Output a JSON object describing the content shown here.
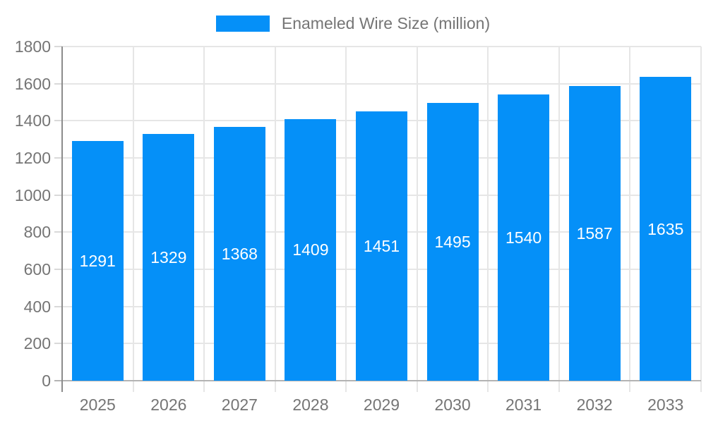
{
  "chart_data": {
    "type": "bar",
    "title": "Enameled Wire Size (million)",
    "categories": [
      "2025",
      "2026",
      "2027",
      "2028",
      "2029",
      "2030",
      "2031",
      "2032",
      "2033"
    ],
    "series": [
      {
        "name": "Enameled Wire Size (million)",
        "values": [
          1291,
          1329,
          1368,
          1409,
          1451,
          1495,
          1540,
          1587,
          1635
        ]
      }
    ],
    "value_labels": [
      "1291",
      "1329",
      "1368",
      "1409",
      "1451",
      "1495",
      "1540",
      "1587",
      "1635"
    ],
    "value_label_position": "center-of-bar",
    "xlabel": "",
    "ylabel": "",
    "ylim": [
      0,
      1800
    ],
    "yticks": [
      0,
      200,
      400,
      600,
      800,
      1000,
      1200,
      1400,
      1600,
      1800
    ],
    "ytick_labels": [
      "0",
      "200",
      "400",
      "600",
      "800",
      "1000",
      "1200",
      "1400",
      "1600",
      "1800"
    ],
    "grid": true,
    "legend_position": "top-center",
    "colors": {
      "bar": "#0590F8",
      "gridline": "#E6E6E6",
      "x_axis_line": "#B3B3B3",
      "y_axis_line": "#8C8C8C",
      "tick_mark": "#D9D9D9",
      "axis_text": "#757575",
      "value_label_text": "#FFFFFF",
      "background": "#FFFFFF"
    }
  },
  "legend": {
    "label": "Enameled Wire Size (million)"
  }
}
